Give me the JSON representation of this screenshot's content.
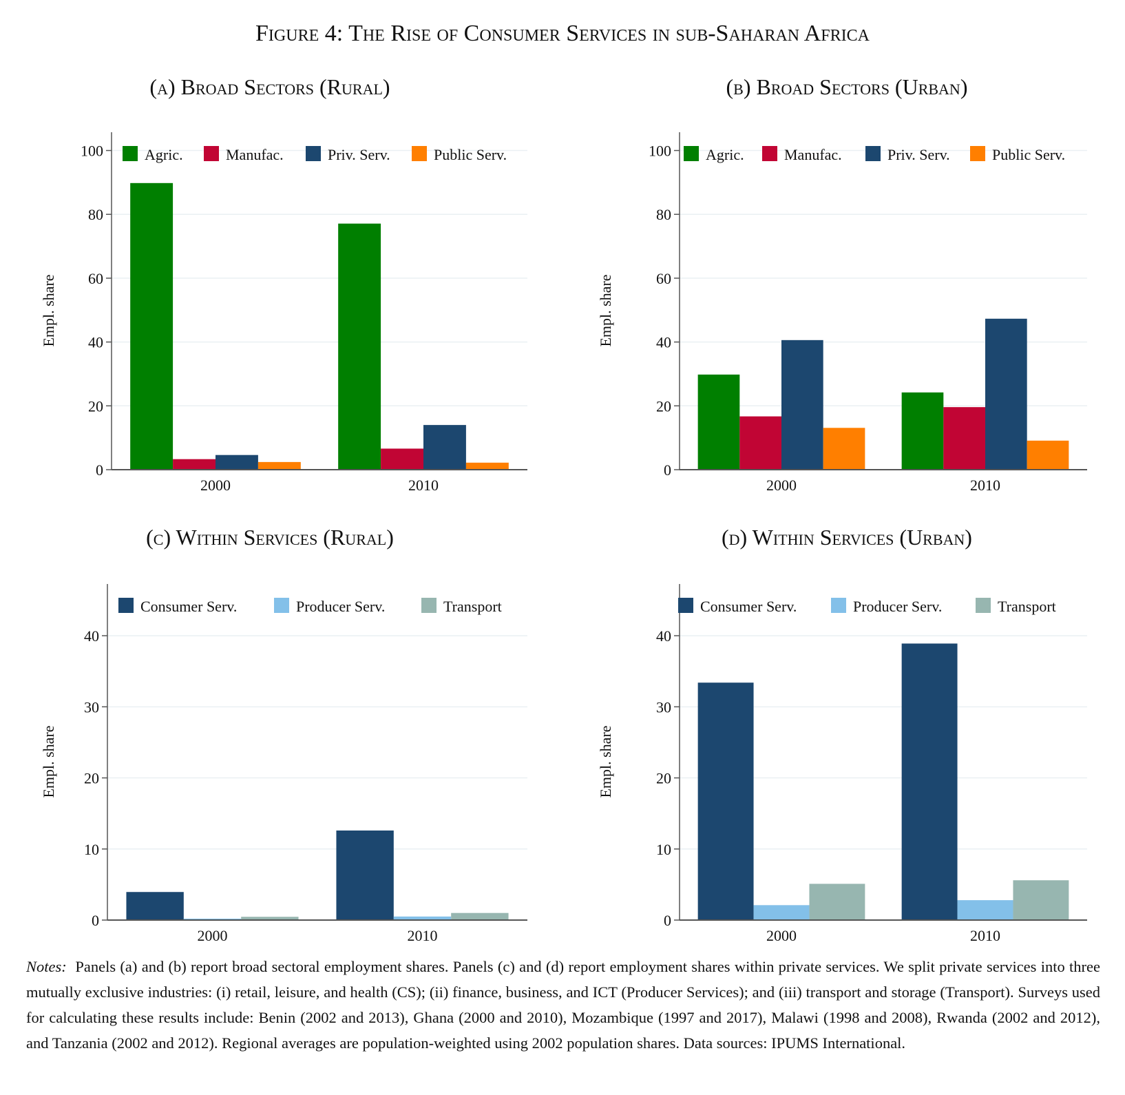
{
  "figure": {
    "title": "Figure 4: The Rise of Consumer Services in sub-Saharan Africa",
    "notes_label": "Notes:",
    "notes_text": "Panels (a) and (b) report broad sectoral employment shares. Panels (c) and (d) report employment shares within private services. We split private services into three mutually exclusive industries: (i) retail, leisure, and health (CS); (ii) finance, business, and ICT (Producer Services); and (iii) transport and storage (Transport). Surveys used for calculating these results include: Benin (2002 and 2013), Ghana (2000 and 2010), Mozambique (1997 and 2017), Malawi (1998 and 2008), Rwanda (2002 and 2012), and Tanzania (2002 and 2012). Regional averages are population-weighted using 2002 population shares. Data sources: IPUMS International."
  },
  "colors": {
    "agric": "#007f00",
    "manufac": "#c10534",
    "priv_serv": "#1c476f",
    "public_serv": "#ff7f00",
    "consumer_serv": "#1c476f",
    "producer_serv": "#83c0e9",
    "transport": "#97b6b0",
    "grid": "#eaf0f3",
    "axis": "#555555"
  },
  "chart_data": [
    {
      "id": "a",
      "type": "bar",
      "title": "(a) Broad Sectors (Rural)",
      "ylabel": "Empl. share",
      "xlabel": "",
      "categories": [
        "2000",
        "2010"
      ],
      "ylim": [
        0,
        104
      ],
      "yticks": [
        0,
        20,
        40,
        60,
        80,
        100
      ],
      "grid": true,
      "legend_position": "top",
      "series": [
        {
          "name": "Agric.",
          "color": "#007f00",
          "values": [
            89.8,
            77.1
          ]
        },
        {
          "name": "Manufac.",
          "color": "#c10534",
          "values": [
            3.3,
            6.6
          ]
        },
        {
          "name": "Priv. Serv.",
          "color": "#1c476f",
          "values": [
            4.6,
            14.0
          ]
        },
        {
          "name": "Public Serv.",
          "color": "#ff7f00",
          "values": [
            2.4,
            2.2
          ]
        }
      ]
    },
    {
      "id": "b",
      "type": "bar",
      "title": "(b) Broad Sectors (Urban)",
      "ylabel": "Empl. share",
      "xlabel": "",
      "categories": [
        "2000",
        "2010"
      ],
      "ylim": [
        0,
        104
      ],
      "yticks": [
        0,
        20,
        40,
        60,
        80,
        100
      ],
      "grid": true,
      "legend_position": "top",
      "series": [
        {
          "name": "Agric.",
          "color": "#007f00",
          "values": [
            29.8,
            24.2
          ]
        },
        {
          "name": "Manufac.",
          "color": "#c10534",
          "values": [
            16.7,
            19.6
          ]
        },
        {
          "name": "Priv. Serv.",
          "color": "#1c476f",
          "values": [
            40.6,
            47.3
          ]
        },
        {
          "name": "Public Serv.",
          "color": "#ff7f00",
          "values": [
            13.1,
            9.1
          ]
        }
      ]
    },
    {
      "id": "c",
      "type": "bar",
      "title": "(c) Within Services (Rural)",
      "ylabel": "Empl. share",
      "xlabel": "",
      "categories": [
        "2000",
        "2010"
      ],
      "ylim": [
        0,
        46.5
      ],
      "yticks": [
        0,
        10,
        20,
        30,
        40
      ],
      "grid": true,
      "legend_position": "top",
      "series": [
        {
          "name": "Consumer Serv.",
          "color": "#1c476f",
          "values": [
            3.95,
            12.6
          ]
        },
        {
          "name": "Producer Serv.",
          "color": "#83c0e9",
          "values": [
            0.2,
            0.5
          ]
        },
        {
          "name": "Transport",
          "color": "#97b6b0",
          "values": [
            0.46,
            1.0
          ]
        }
      ]
    },
    {
      "id": "d",
      "type": "bar",
      "title": "(d) Within Services (Urban)",
      "ylabel": "Empl. share",
      "xlabel": "",
      "categories": [
        "2000",
        "2010"
      ],
      "ylim": [
        0,
        46.5
      ],
      "yticks": [
        0,
        10,
        20,
        30,
        40
      ],
      "grid": true,
      "legend_position": "top",
      "series": [
        {
          "name": "Consumer Serv.",
          "color": "#1c476f",
          "values": [
            33.4,
            38.9
          ]
        },
        {
          "name": "Producer Serv.",
          "color": "#83c0e9",
          "values": [
            2.1,
            2.8
          ]
        },
        {
          "name": "Transport",
          "color": "#97b6b0",
          "values": [
            5.1,
            5.6
          ]
        }
      ]
    }
  ]
}
